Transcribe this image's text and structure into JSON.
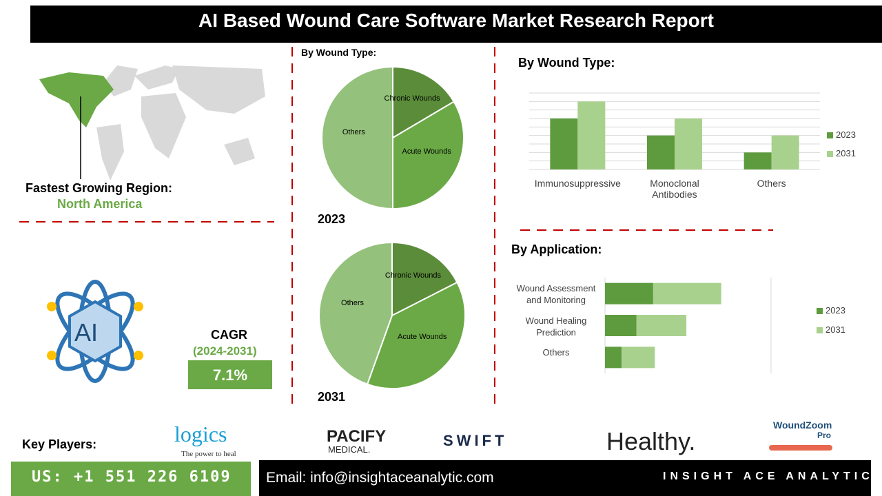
{
  "header": {
    "title": "AI Based Wound Care Software Market Research Report"
  },
  "region": {
    "label": "Fastest Growing Region:",
    "value": "North America"
  },
  "cagr": {
    "label": "CAGR",
    "period": "(2024-2031)",
    "value": "7.1%"
  },
  "icon": {
    "text": "AI"
  },
  "key_players": {
    "label": "Key Players:",
    "logos": [
      "logics",
      "The power to heal",
      "PACIFY",
      "MEDICAL.",
      "SWIFT",
      "Healthy.",
      "WoundZoom",
      "Pro"
    ]
  },
  "footer": {
    "phone": "US: +1 551 226 6109",
    "email": "Email: info@insightaceanalytic.com",
    "brand": "INSIGHT ACE ANALYTIC"
  },
  "chart_data": [
    {
      "type": "pie",
      "title": "By Wound Type:",
      "subtitle": "2023",
      "categories": [
        "Chronic Wounds",
        "Acute Wounds",
        "Others"
      ],
      "values": [
        16.5,
        33.5,
        50
      ],
      "colors": [
        "#5b8c3a",
        "#6aa945",
        "#94c17b"
      ]
    },
    {
      "type": "pie",
      "subtitle": "2031",
      "categories": [
        "Chronic Wounds",
        "Acute Wounds",
        "Others"
      ],
      "values": [
        17.5,
        38,
        44.5
      ],
      "colors": [
        "#5b8c3a",
        "#6aa945",
        "#94c17b"
      ]
    },
    {
      "type": "bar",
      "title": "By Wound Type:",
      "categories": [
        "Immunosuppressive",
        "Monoclonal Antibodies",
        "Others"
      ],
      "series": [
        {
          "name": "2023",
          "color": "#5e9b3e",
          "values": [
            6,
            4,
            2
          ]
        },
        {
          "name": "2031",
          "color": "#a9d18e",
          "values": [
            8,
            6,
            4
          ]
        }
      ],
      "ylim": [
        0,
        9
      ],
      "yticks": [
        0,
        1,
        2,
        3,
        4,
        5,
        6,
        7,
        8,
        9
      ],
      "grid": true
    },
    {
      "type": "stacked-hbar",
      "title": "By Application:",
      "categories": [
        "Wound Assessment and Monitoring",
        "Wound Healing Prediction",
        "Others"
      ],
      "series": [
        {
          "name": "2023",
          "color": "#5e9b3e",
          "values": [
            2.9,
            1.9,
            1.0
          ]
        },
        {
          "name": "2031",
          "color": "#a9d18e",
          "values": [
            4.1,
            3.0,
            2.0
          ]
        }
      ],
      "xlim": [
        0,
        10
      ],
      "xticks": [
        0,
        10
      ],
      "grid": true
    }
  ]
}
